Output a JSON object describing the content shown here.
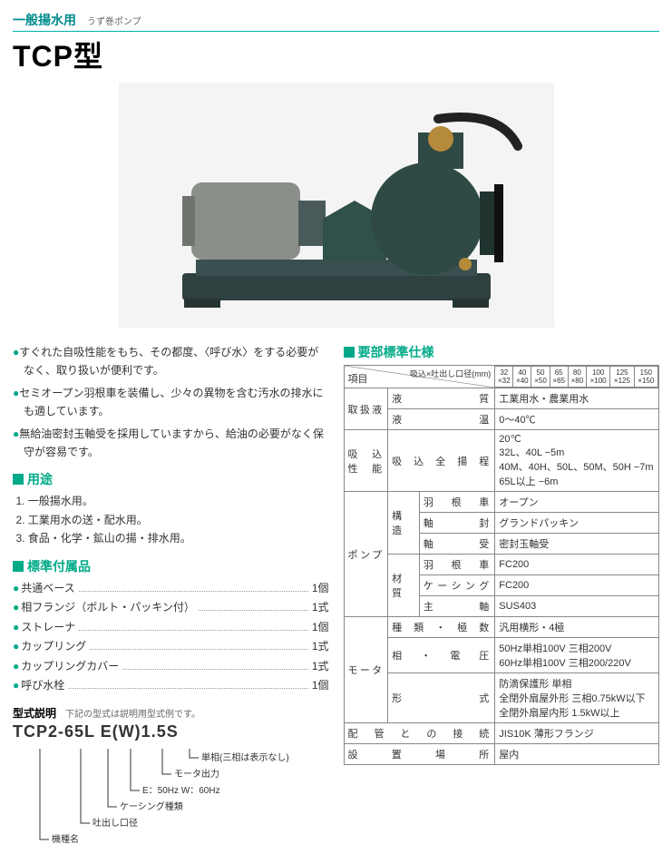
{
  "header": {
    "category": "一般揚水用",
    "subcategory": "うず巻ポンプ",
    "title": "TCP型"
  },
  "features": [
    "すぐれた自吸性能をもち、その都度、〈呼び水〉をする必要がなく、取り扱いが便利です。",
    "セミオープン羽根車を装備し、少々の異物を含む汚水の排水にも適しています。",
    "無給油密封玉軸受を採用していますから、給油の必要がなく保守が容易です。"
  ],
  "uses_h": "用途",
  "uses": [
    "一般揚水用。",
    "工業用水の送・配水用。",
    "食品・化学・鉱山の揚・排水用。"
  ],
  "acc_h": "標準付属品",
  "accessories": [
    {
      "name": "共通ベース",
      "qty": "1個"
    },
    {
      "name": "相フランジ（ボルト・パッキン付）",
      "qty": "1式"
    },
    {
      "name": "ストレーナ",
      "qty": "1個"
    },
    {
      "name": "カップリング",
      "qty": "1式"
    },
    {
      "name": "カップリングカバー",
      "qty": "1式"
    },
    {
      "name": "呼び水栓",
      "qty": "1個"
    }
  ],
  "model": {
    "h": "型式説明",
    "note": "下記の型式は説明用型式例です。",
    "code": "TCP2-65L E(W)1.5S",
    "legend": [
      "単相(三相は表示なし)",
      "モータ出力",
      "E：50Hz W：60Hz",
      "ケーシング種類",
      "吐出し口径",
      "機種名"
    ]
  },
  "spec_h": "要部標準仕様",
  "spec": {
    "col_h_left": "項目",
    "col_h_right": "吸込×吐出し口径(mm)",
    "sizes": [
      "32×32",
      "40×40",
      "50×50",
      "65×65",
      "80×80",
      "100×100",
      "125×125",
      "150×150"
    ],
    "rows": [
      {
        "g": "取扱液",
        "k": "液　　　　質",
        "v": "工業用水・農業用水"
      },
      {
        "g": "",
        "k": "液　　　　温",
        "v": "0〜40℃"
      },
      {
        "g": "吸　込\n性　能",
        "k": "吸 込 全 揚 程",
        "v": "20℃\n32L、40L −5m\n40M、40H、50L、50M、50H −7m\n65L以上 −6m"
      },
      {
        "g": "ポンプ",
        "sub": "構造",
        "k": "羽　根　車",
        "v": "オープン"
      },
      {
        "g": "",
        "sub": "",
        "k": "軸　　　封",
        "v": "グランドパッキン"
      },
      {
        "g": "",
        "sub": "",
        "k": "軸　　　受",
        "v": "密封玉軸受"
      },
      {
        "g": "",
        "sub": "材質",
        "k": "羽　根　車",
        "v": "FC200"
      },
      {
        "g": "",
        "sub": "",
        "k": "ケーシング",
        "v": "FC200"
      },
      {
        "g": "",
        "sub": "",
        "k": "主　　　軸",
        "v": "SUS403"
      },
      {
        "g": "モータ",
        "k": "種 類 ・ 極 数",
        "v": "汎用横形・4極"
      },
      {
        "g": "",
        "k": "相　・　電　圧",
        "v": "50Hz単相100V 三相200V\n60Hz単相100V 三相200/220V"
      },
      {
        "g": "",
        "k": "形　　　　式",
        "v": "防滴保護形 単相\n全閉外扇屋外形 三相0.75kW以下\n全閉外扇屋内形 1.5kW以上"
      },
      {
        "g": "配 管 と の 接 続",
        "k": "",
        "v": "JIS10K 薄形フランジ"
      },
      {
        "g": "設　置　場　所",
        "k": "",
        "v": "屋内"
      }
    ]
  },
  "colors": {
    "accent": "#00aa88",
    "border": "#888888",
    "text": "#333333"
  }
}
